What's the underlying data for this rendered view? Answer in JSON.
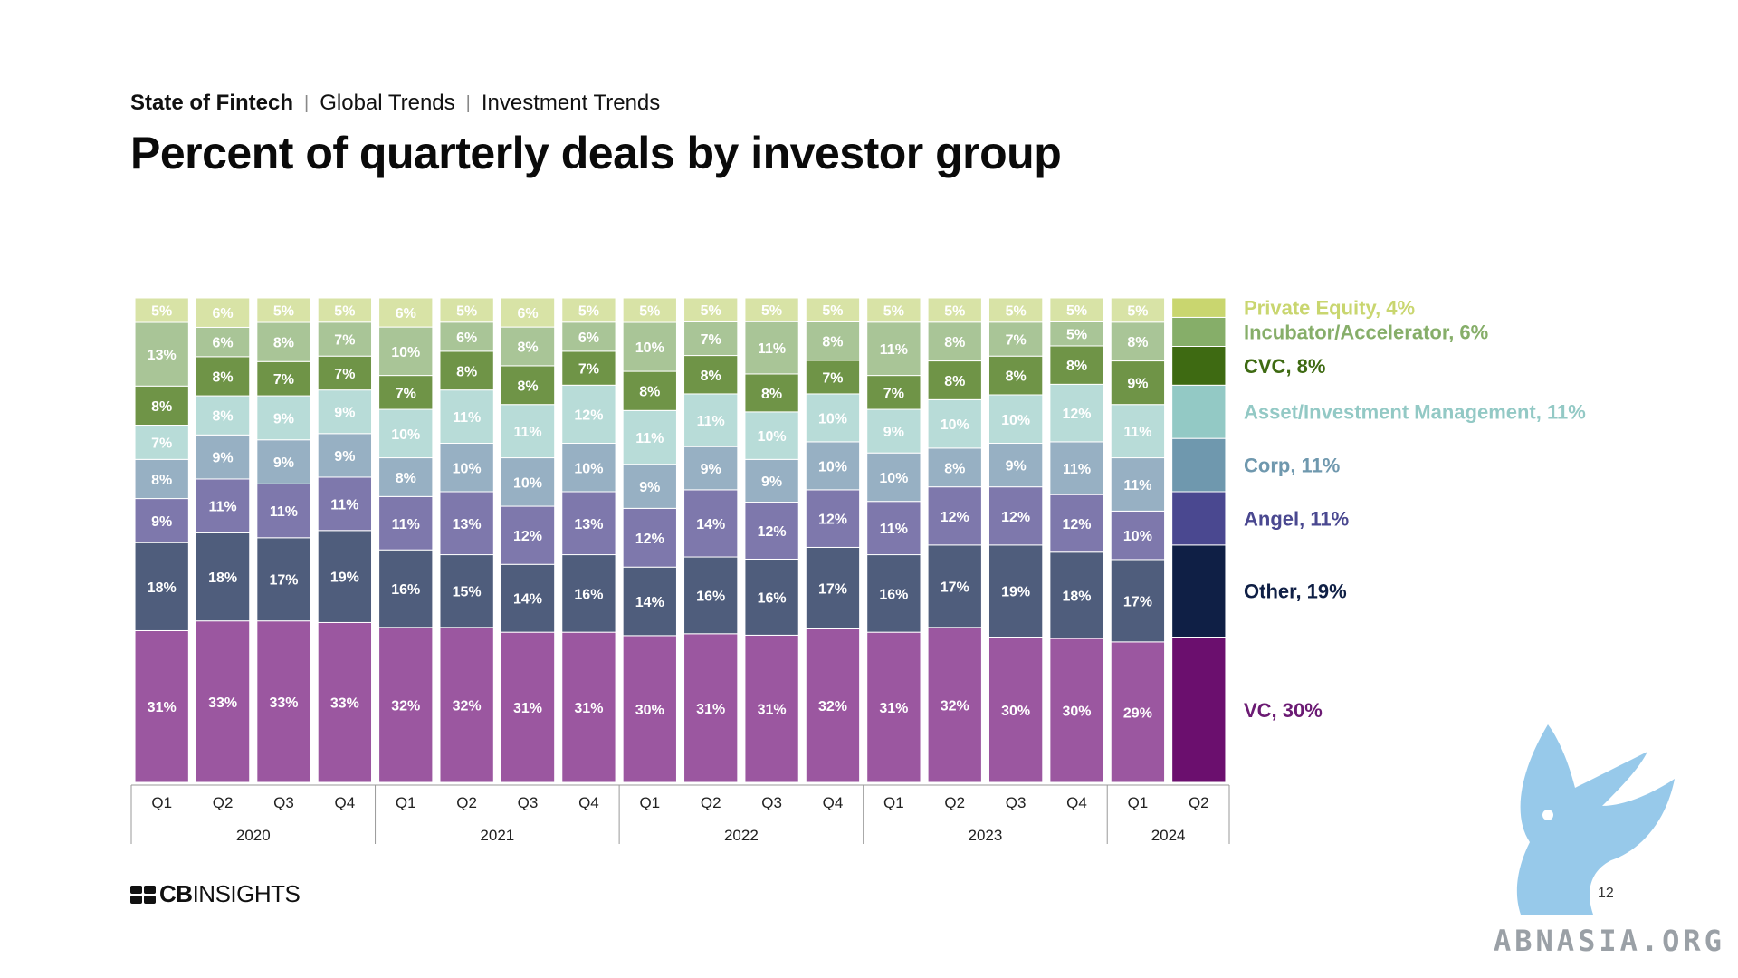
{
  "breadcrumb": {
    "section": "State of Fintech",
    "topic": "Global Trends",
    "subtopic": "Investment Trends",
    "separator": "|"
  },
  "title": "Percent of quarterly deals by investor group",
  "footer": {
    "brand_prefix": "CB",
    "brand_suffix": "INSIGHTS",
    "page_number": "12"
  },
  "watermark": {
    "text": "ABNASIA.ORG"
  },
  "chart_data": {
    "type": "bar",
    "stacked": true,
    "normalized": true,
    "ylim": [
      0,
      100
    ],
    "categories": [
      "Q1",
      "Q2",
      "Q3",
      "Q4",
      "Q1",
      "Q2",
      "Q3",
      "Q4",
      "Q1",
      "Q2",
      "Q3",
      "Q4",
      "Q1",
      "Q2",
      "Q3",
      "Q4",
      "Q1",
      "Q2"
    ],
    "year_groups": [
      {
        "label": "2020",
        "count": 4
      },
      {
        "label": "2021",
        "count": 4
      },
      {
        "label": "2022",
        "count": 4
      },
      {
        "label": "2023",
        "count": 4
      },
      {
        "label": "2024",
        "count": 2
      }
    ],
    "highlight_last": true,
    "series": [
      {
        "name": "VC",
        "legend": "VC, 30%",
        "color": "#9b57a0",
        "highlight_color": "#6b0f6e",
        "label_color": "#6b1a73",
        "values": [
          31,
          33,
          33,
          33,
          32,
          32,
          31,
          31,
          30,
          31,
          31,
          32,
          31,
          32,
          30,
          30,
          29,
          30
        ]
      },
      {
        "name": "Other",
        "legend": "Other, 19%",
        "color": "#4f5d7c",
        "highlight_color": "#0f1f45",
        "label_color": "#0f1f45",
        "values": [
          18,
          18,
          17,
          19,
          16,
          15,
          14,
          16,
          14,
          16,
          16,
          17,
          16,
          17,
          19,
          18,
          17,
          19
        ]
      },
      {
        "name": "Angel",
        "legend": "Angel, 11%",
        "color": "#7e78ac",
        "highlight_color": "#4a4890",
        "label_color": "#4a4890",
        "values": [
          9,
          11,
          11,
          11,
          11,
          13,
          12,
          13,
          12,
          14,
          12,
          12,
          11,
          12,
          12,
          12,
          10,
          11
        ]
      },
      {
        "name": "Corp",
        "legend": "Corp, 11%",
        "color": "#97b0c3",
        "highlight_color": "#6f98ae",
        "label_color": "#6f98ae",
        "values": [
          8,
          9,
          9,
          9,
          8,
          10,
          10,
          10,
          9,
          9,
          9,
          10,
          10,
          8,
          9,
          11,
          11,
          11
        ]
      },
      {
        "name": "Asset/Investment Management",
        "legend": "Asset/Investment Management, 11%",
        "color": "#b8dcd8",
        "highlight_color": "#93c9c5",
        "label_color": "#93c9c5",
        "values": [
          7,
          8,
          9,
          9,
          10,
          11,
          11,
          12,
          11,
          11,
          10,
          10,
          9,
          10,
          10,
          12,
          11,
          11
        ]
      },
      {
        "name": "CVC",
        "legend": "CVC, 8%",
        "color": "#6f9447",
        "highlight_color": "#3e6a12",
        "label_color": "#3e6a12",
        "values": [
          8,
          8,
          7,
          7,
          7,
          8,
          8,
          7,
          8,
          8,
          8,
          7,
          7,
          8,
          8,
          8,
          9,
          8
        ]
      },
      {
        "name": "Incubator/Accelerator",
        "legend": "Incubator/Accelerator, 6%",
        "color": "#a9c597",
        "highlight_color": "#86ae69",
        "label_color": "#86ae69",
        "values": [
          13,
          6,
          8,
          7,
          10,
          6,
          8,
          6,
          10,
          7,
          11,
          8,
          11,
          8,
          7,
          5,
          8,
          6
        ]
      },
      {
        "name": "Private Equity",
        "legend": "Private Equity, 4%",
        "color": "#d8e3a6",
        "highlight_color": "#c9d66f",
        "label_color": "#c9d66f",
        "values": [
          5,
          6,
          5,
          5,
          6,
          5,
          6,
          5,
          5,
          5,
          5,
          5,
          5,
          5,
          5,
          5,
          5,
          4
        ]
      }
    ]
  }
}
